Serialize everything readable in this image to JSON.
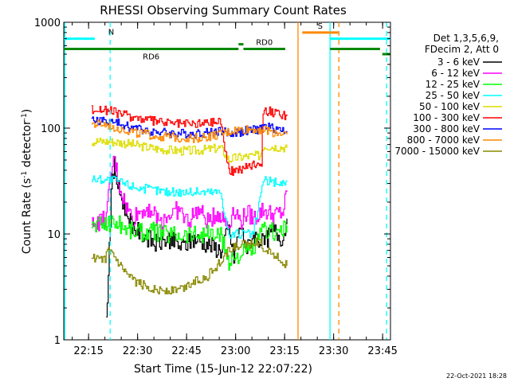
{
  "chart_data": {
    "type": "line",
    "title": "RHESSI Observing Summary Count Rates",
    "xlabel": "Start Time (15-Jun-12 22:07:22)",
    "ylabel_main": "Count Rate (s",
    "ylabel_sup1": "-1",
    "ylabel_mid": " detector",
    "ylabel_sup2": "-1",
    "ylabel_end": ")",
    "y_scale": "log",
    "ylim": [
      1,
      1000
    ],
    "xlim_minutes": [
      0,
      100
    ],
    "yticks": [
      {
        "label": "1",
        "value": 1
      },
      {
        "label": "10",
        "value": 10
      },
      {
        "label": "100",
        "value": 100
      },
      {
        "label": "1000",
        "value": 1000
      }
    ],
    "xticks": [
      {
        "label": "22:15",
        "value": 7.6
      },
      {
        "label": "22:30",
        "value": 22.6
      },
      {
        "label": "22:45",
        "value": 37.6
      },
      {
        "label": "23:00",
        "value": 52.6
      },
      {
        "label": "23:15",
        "value": 67.6
      },
      {
        "label": "23:30",
        "value": 82.6
      },
      {
        "label": "23:45",
        "value": 97.6
      }
    ],
    "legend": {
      "placement": "right",
      "header": [
        "Det 1,3,5,6,9,",
        "FDecim 2, Att 0"
      ],
      "entries": [
        {
          "label": "3 - 6 keV",
          "color": "#000000"
        },
        {
          "label": "6 - 12 keV",
          "color": "#ff00ff"
        },
        {
          "label": "12 - 25 keV",
          "color": "#00ff00"
        },
        {
          "label": "25 - 50 keV",
          "color": "#00ffff"
        },
        {
          "label": "50 - 100 keV",
          "color": "#dddd00"
        },
        {
          "label": "100 - 300 keV",
          "color": "#ff0000"
        },
        {
          "label": "300 - 800 keV",
          "color": "#0000ff"
        },
        {
          "label": "800 - 7000 keV",
          "color": "#ff8800"
        },
        {
          "label": "7000 - 15000 keV",
          "color": "#888800"
        }
      ]
    },
    "series": [
      {
        "name": "3 - 6 keV",
        "color": "#000000",
        "x": [
          13,
          14.5,
          15.5,
          16.5,
          18,
          20,
          22,
          25,
          28,
          32,
          36,
          40,
          44,
          48,
          50.5,
          52,
          54,
          56,
          58,
          61,
          64,
          67,
          68.3
        ],
        "y": [
          1.5,
          25,
          45,
          28,
          20,
          14,
          11,
          9.5,
          8,
          9,
          7.5,
          9,
          8,
          7,
          11,
          6,
          12,
          7,
          10,
          8,
          11,
          9,
          14
        ]
      },
      {
        "name": "6 - 12 keV",
        "color": "#ff00ff",
        "x": [
          8.5,
          11,
          13,
          14.5,
          15.5,
          17,
          19,
          21,
          23,
          26,
          29,
          32,
          35,
          38,
          41,
          44,
          47,
          50.5,
          52,
          54,
          56,
          58,
          61,
          64,
          67,
          68.3
        ],
        "y": [
          12,
          13,
          14,
          40,
          50,
          28,
          18,
          14,
          16,
          18,
          13,
          15,
          17,
          13,
          17,
          13,
          16,
          12,
          18,
          13,
          16,
          14,
          17,
          15,
          16,
          25
        ]
      },
      {
        "name": "12 - 25 keV",
        "color": "#00ff00",
        "x": [
          8.5,
          12,
          16,
          20,
          24,
          28,
          32,
          36,
          40,
          44,
          48,
          50.5,
          52,
          55,
          58,
          61,
          64,
          67,
          68.3
        ],
        "y": [
          12,
          12.5,
          13,
          11,
          10.5,
          10.5,
          10,
          10,
          10,
          10,
          9.5,
          5.5,
          6,
          6.5,
          7,
          11,
          10.5,
          11,
          12
        ]
      },
      {
        "name": "25 - 50 keV",
        "color": "#00ffff",
        "x": [
          8.5,
          12,
          16,
          20,
          24,
          28,
          32,
          36,
          40,
          44,
          48,
          50.5,
          52,
          55,
          58,
          61,
          64,
          67,
          68.3
        ],
        "y": [
          33,
          33,
          32,
          29,
          27,
          26,
          25,
          25,
          25,
          25,
          25,
          9.5,
          10,
          10,
          10,
          32,
          31,
          30,
          32
        ]
      },
      {
        "name": "50 - 100 keV",
        "color": "#dddd00",
        "x": [
          8.5,
          12,
          16,
          20,
          24,
          28,
          32,
          36,
          40,
          44,
          48,
          50.5,
          52,
          56,
          60,
          61,
          64,
          67,
          68.3
        ],
        "y": [
          75,
          75,
          74,
          71,
          67,
          64,
          62,
          61,
          61,
          63,
          65,
          50,
          52,
          54,
          55,
          68,
          67,
          66,
          65
        ]
      },
      {
        "name": "100 - 300 keV",
        "color": "#ff0000",
        "x": [
          8.5,
          12,
          16,
          20,
          24,
          28,
          32,
          36,
          40,
          44,
          48,
          50.5,
          52,
          55,
          58,
          60.5,
          61,
          64,
          67,
          68.3
        ],
        "y": [
          150,
          150,
          140,
          130,
          122,
          116,
          112,
          110,
          110,
          113,
          118,
          38,
          40,
          42,
          46,
          48,
          150,
          140,
          132,
          130
        ]
      },
      {
        "name": "300 - 800 keV",
        "color": "#0000ff",
        "x": [
          8.5,
          12,
          16,
          20,
          24,
          28,
          32,
          36,
          40,
          44,
          48,
          50.5,
          52,
          56,
          60,
          61,
          64,
          67,
          68.3
        ],
        "y": [
          118,
          118,
          112,
          103,
          97,
          93,
          90,
          89,
          89,
          91,
          95,
          88,
          90,
          94,
          98,
          104,
          100,
          96,
          94
        ]
      },
      {
        "name": "800 - 7000 keV",
        "color": "#ff8800",
        "x": [
          8.5,
          12,
          16,
          20,
          24,
          28,
          32,
          36,
          40,
          44,
          48,
          50.5,
          52,
          56,
          60,
          61,
          64,
          67,
          68.3
        ],
        "y": [
          108,
          108,
          102,
          94,
          88,
          84,
          82,
          81,
          81,
          83,
          87,
          92,
          95,
          97,
          98,
          96,
          92,
          89,
          87
        ]
      },
      {
        "name": "7000 - 15000 keV",
        "color": "#888800",
        "x": [
          8.5,
          12,
          14,
          17,
          20,
          24,
          28,
          32,
          36,
          40,
          44,
          48,
          50.5,
          52,
          56,
          60,
          61,
          64,
          67,
          68.3
        ],
        "y": [
          6,
          5.5,
          7,
          5,
          3.8,
          3.3,
          3,
          2.9,
          3,
          3.6,
          4,
          5.5,
          7,
          7.5,
          8,
          8.5,
          7.5,
          6.5,
          5.5,
          5
        ]
      }
    ],
    "annotations": [
      {
        "text": "N",
        "color": "#00ffff",
        "x_start": 0,
        "x_end": 9.5,
        "y": 700
      },
      {
        "text": "RD6",
        "color": "#008800",
        "x_start": 0,
        "x_end": 53.5,
        "y": 560
      },
      {
        "text": "RD0",
        "color": "#008800",
        "x_start": 55,
        "x_end": 67.8,
        "y": 560
      },
      {
        "text": "",
        "color": "#008800",
        "x_start": 55,
        "x_end": 53.5,
        "y": 620
      },
      {
        "text": "",
        "color": "#008800",
        "x_start": 81.5,
        "x_end": 96.8,
        "y": 560
      },
      {
        "text": "",
        "color": "#008800",
        "x_start": 97.5,
        "x_end": 100,
        "y": 500
      },
      {
        "text": "S",
        "color": "#ff8800",
        "x_start": 73,
        "x_end": 84,
        "y": 800
      },
      {
        "text": "",
        "color": "#00ffff",
        "x_start": 81.5,
        "x_end": 100,
        "y": 700
      }
    ],
    "vertical_markers": [
      {
        "x": 0.3,
        "color": "#00ffff",
        "style": "solid"
      },
      {
        "x": 14.2,
        "color": "#00ffff",
        "style": "dashed"
      },
      {
        "x": 71.7,
        "color": "#ff8800",
        "style": "solid"
      },
      {
        "x": 81.5,
        "color": "#00ffff",
        "style": "solid"
      },
      {
        "x": 84.2,
        "color": "#ff8800",
        "style": "dashed"
      },
      {
        "x": 98.8,
        "color": "#00ffff",
        "style": "dashed"
      }
    ],
    "grid": false
  },
  "footer": {
    "date": "22-Oct-2021 18:28"
  }
}
